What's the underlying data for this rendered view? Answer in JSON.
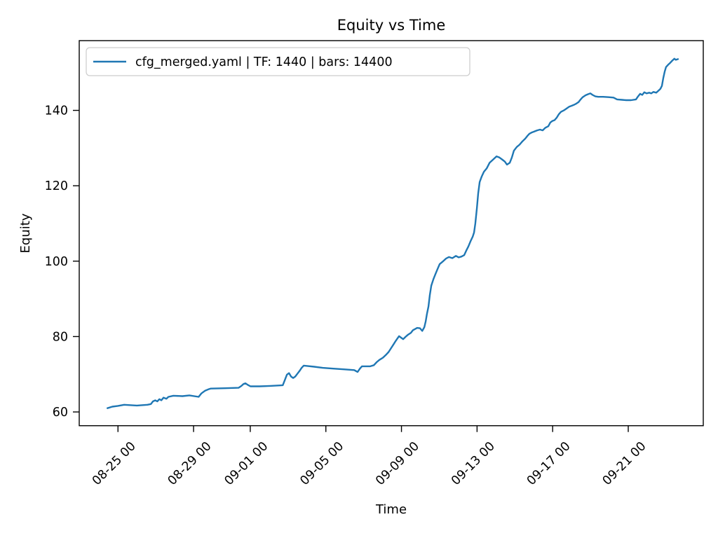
{
  "figure": {
    "title": "Equity vs Time",
    "xlabel": "Time",
    "ylabel": "Equity",
    "background_color": "#ffffff",
    "spine_color": "#000000",
    "text_color": "#000000",
    "legend": {
      "label": "cfg_merged.yaml | TF: 1440 | bars: 14400",
      "line_color": "#1f77b4",
      "border_color": "#cccccc",
      "position": "upper left"
    }
  },
  "chart_data": {
    "type": "line",
    "title": "Equity vs Time",
    "xlabel": "Time",
    "ylabel": "Equity",
    "grid": false,
    "legend_position": "upper left",
    "x_unit": "timeline day index: 25 = Aug 25 00:00, 32 = Sep 01 00:00, 52 = Sep 21 00:00; fractional part = time of day",
    "xlim": [
      22.95,
      55.97
    ],
    "ylim": [
      56.35,
      158.5
    ],
    "x_ticks": [
      {
        "day": 25,
        "label": "08-25 00"
      },
      {
        "day": 29,
        "label": "08-29 00"
      },
      {
        "day": 32,
        "label": "09-01 00"
      },
      {
        "day": 36,
        "label": "09-05 00"
      },
      {
        "day": 40,
        "label": "09-09 00"
      },
      {
        "day": 44,
        "label": "09-13 00"
      },
      {
        "day": 48,
        "label": "09-17 00"
      },
      {
        "day": 52,
        "label": "09-21 00"
      }
    ],
    "y_ticks": [
      60,
      80,
      100,
      120,
      140
    ],
    "series": [
      {
        "name": "cfg_merged.yaml | TF: 1440 | bars: 14400",
        "color": "#1f77b4",
        "line_width": 2.4,
        "points": [
          [
            24.44,
            61.0
          ],
          [
            24.7,
            61.4
          ],
          [
            25.0,
            61.6
          ],
          [
            25.33,
            61.9
          ],
          [
            26.0,
            61.7
          ],
          [
            26.56,
            61.9
          ],
          [
            26.74,
            62.1
          ],
          [
            26.85,
            62.8
          ],
          [
            26.97,
            63.1
          ],
          [
            27.08,
            62.8
          ],
          [
            27.19,
            63.4
          ],
          [
            27.3,
            63.1
          ],
          [
            27.41,
            63.8
          ],
          [
            27.56,
            63.5
          ],
          [
            27.67,
            64.0
          ],
          [
            27.93,
            64.3
          ],
          [
            28.41,
            64.2
          ],
          [
            28.78,
            64.4
          ],
          [
            29.27,
            64.0
          ],
          [
            29.41,
            64.9
          ],
          [
            29.6,
            65.6
          ],
          [
            29.78,
            66.0
          ],
          [
            29.9,
            66.2
          ],
          [
            30.64,
            66.3
          ],
          [
            31.38,
            66.4
          ],
          [
            31.53,
            66.9
          ],
          [
            31.64,
            67.4
          ],
          [
            31.75,
            67.6
          ],
          [
            31.86,
            67.2
          ],
          [
            32.01,
            66.8
          ],
          [
            32.49,
            66.8
          ],
          [
            33.05,
            66.9
          ],
          [
            33.72,
            67.1
          ],
          [
            33.83,
            68.5
          ],
          [
            33.94,
            69.9
          ],
          [
            34.05,
            70.3
          ],
          [
            34.16,
            69.4
          ],
          [
            34.27,
            69.0
          ],
          [
            34.38,
            69.4
          ],
          [
            34.49,
            70.1
          ],
          [
            34.61,
            70.9
          ],
          [
            34.72,
            71.7
          ],
          [
            34.83,
            72.3
          ],
          [
            35.01,
            72.2
          ],
          [
            35.38,
            72.0
          ],
          [
            35.83,
            71.7
          ],
          [
            36.39,
            71.5
          ],
          [
            36.94,
            71.3
          ],
          [
            37.5,
            71.1
          ],
          [
            37.68,
            70.6
          ],
          [
            37.8,
            71.5
          ],
          [
            37.91,
            72.1
          ],
          [
            38.35,
            72.1
          ],
          [
            38.54,
            72.4
          ],
          [
            38.69,
            73.2
          ],
          [
            38.83,
            73.8
          ],
          [
            39.02,
            74.4
          ],
          [
            39.17,
            75.1
          ],
          [
            39.32,
            75.9
          ],
          [
            39.46,
            77.0
          ],
          [
            39.58,
            77.9
          ],
          [
            39.69,
            78.8
          ],
          [
            39.8,
            79.6
          ],
          [
            39.87,
            80.1
          ],
          [
            39.98,
            79.7
          ],
          [
            40.09,
            79.3
          ],
          [
            40.21,
            79.9
          ],
          [
            40.35,
            80.5
          ],
          [
            40.5,
            81.0
          ],
          [
            40.61,
            81.7
          ],
          [
            40.72,
            82.0
          ],
          [
            40.83,
            82.3
          ],
          [
            40.98,
            82.2
          ],
          [
            41.1,
            81.5
          ],
          [
            41.21,
            82.5
          ],
          [
            41.28,
            84.0
          ],
          [
            41.35,
            86.0
          ],
          [
            41.43,
            88.0
          ],
          [
            41.5,
            91.0
          ],
          [
            41.58,
            93.5
          ],
          [
            41.69,
            95.2
          ],
          [
            41.8,
            96.6
          ],
          [
            41.91,
            97.9
          ],
          [
            42.02,
            99.2
          ],
          [
            42.21,
            100.0
          ],
          [
            42.36,
            100.7
          ],
          [
            42.51,
            101.1
          ],
          [
            42.69,
            100.8
          ],
          [
            42.88,
            101.4
          ],
          [
            43.03,
            101.0
          ],
          [
            43.17,
            101.2
          ],
          [
            43.32,
            101.6
          ],
          [
            43.43,
            102.8
          ],
          [
            43.54,
            103.9
          ],
          [
            43.65,
            105.2
          ],
          [
            43.77,
            106.5
          ],
          [
            43.84,
            107.6
          ],
          [
            43.91,
            110.0
          ],
          [
            43.99,
            114.0
          ],
          [
            44.06,
            118.0
          ],
          [
            44.14,
            121.0
          ],
          [
            44.25,
            122.5
          ],
          [
            44.36,
            123.7
          ],
          [
            44.51,
            124.6
          ],
          [
            44.66,
            126.1
          ],
          [
            44.84,
            126.9
          ],
          [
            45.03,
            127.8
          ],
          [
            45.18,
            127.5
          ],
          [
            45.32,
            127.0
          ],
          [
            45.47,
            126.4
          ],
          [
            45.58,
            125.6
          ],
          [
            45.73,
            126.1
          ],
          [
            45.84,
            127.5
          ],
          [
            45.95,
            129.3
          ],
          [
            46.1,
            130.3
          ],
          [
            46.25,
            130.9
          ],
          [
            46.4,
            131.8
          ],
          [
            46.55,
            132.5
          ],
          [
            46.66,
            133.2
          ],
          [
            46.77,
            133.8
          ],
          [
            46.88,
            134.1
          ],
          [
            47.03,
            134.4
          ],
          [
            47.18,
            134.7
          ],
          [
            47.33,
            134.9
          ],
          [
            47.47,
            134.7
          ],
          [
            47.62,
            135.4
          ],
          [
            47.77,
            135.8
          ],
          [
            47.88,
            136.8
          ],
          [
            47.99,
            137.2
          ],
          [
            48.1,
            137.4
          ],
          [
            48.22,
            138.1
          ],
          [
            48.33,
            139.0
          ],
          [
            48.44,
            139.6
          ],
          [
            48.59,
            140.0
          ],
          [
            48.74,
            140.5
          ],
          [
            48.88,
            141.0
          ],
          [
            48.99,
            141.2
          ],
          [
            49.14,
            141.5
          ],
          [
            49.25,
            141.8
          ],
          [
            49.37,
            142.2
          ],
          [
            49.48,
            142.9
          ],
          [
            49.59,
            143.5
          ],
          [
            49.74,
            144.0
          ],
          [
            49.88,
            144.3
          ],
          [
            50.0,
            144.5
          ],
          [
            50.11,
            144.1
          ],
          [
            50.26,
            143.7
          ],
          [
            50.41,
            143.6
          ],
          [
            50.67,
            143.6
          ],
          [
            50.96,
            143.5
          ],
          [
            51.22,
            143.4
          ],
          [
            51.41,
            142.9
          ],
          [
            51.67,
            142.8
          ],
          [
            51.89,
            142.7
          ],
          [
            52.15,
            142.7
          ],
          [
            52.41,
            142.9
          ],
          [
            52.52,
            143.7
          ],
          [
            52.63,
            144.4
          ],
          [
            52.74,
            144.1
          ],
          [
            52.85,
            144.8
          ],
          [
            52.97,
            144.5
          ],
          [
            53.11,
            144.7
          ],
          [
            53.22,
            144.5
          ],
          [
            53.33,
            144.9
          ],
          [
            53.48,
            144.7
          ],
          [
            53.59,
            145.2
          ],
          [
            53.7,
            145.7
          ],
          [
            53.78,
            146.5
          ],
          [
            53.85,
            148.5
          ],
          [
            53.93,
            150.3
          ],
          [
            54.0,
            151.5
          ],
          [
            54.11,
            152.1
          ],
          [
            54.22,
            152.6
          ],
          [
            54.33,
            153.2
          ],
          [
            54.44,
            153.7
          ],
          [
            54.52,
            153.4
          ],
          [
            54.63,
            153.6
          ]
        ]
      }
    ]
  }
}
